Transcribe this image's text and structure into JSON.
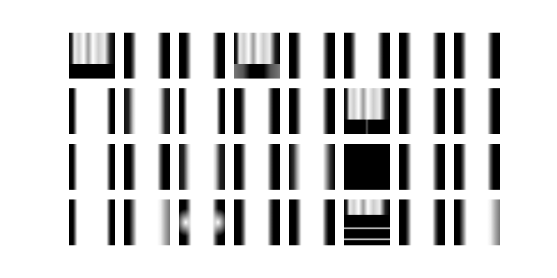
{
  "grid": {
    "rows": 4,
    "cols": 8,
    "palette": [
      "#000000",
      "#ffffff"
    ]
  },
  "tiles": [
    "bright-top-dark-bottom",
    "twin-bars",
    "twin-bars",
    "bright-top-dark-notch",
    "twin-bars",
    "twin-bars",
    "twin-bars",
    "twin-bars",
    "twin-bars-thin",
    "twin-bars-soft",
    "twin-bars-thin",
    "twin-bars",
    "twin-bars",
    "bright-top-dark-bottom-split",
    "twin-bars",
    "twin-bars",
    "twin-bars-thin",
    "twin-bars",
    "twin-bars-soft",
    "twin-bars",
    "twin-bars-fade",
    "solid-black",
    "twin-bars",
    "twin-bars",
    "twin-bars-thin",
    "twin-bars-soft-right",
    "bow-tie-bars",
    "twin-bars",
    "twin-bars",
    "bright-top-striped-bottom",
    "twin-bars",
    "twin-bars-soft-right"
  ]
}
